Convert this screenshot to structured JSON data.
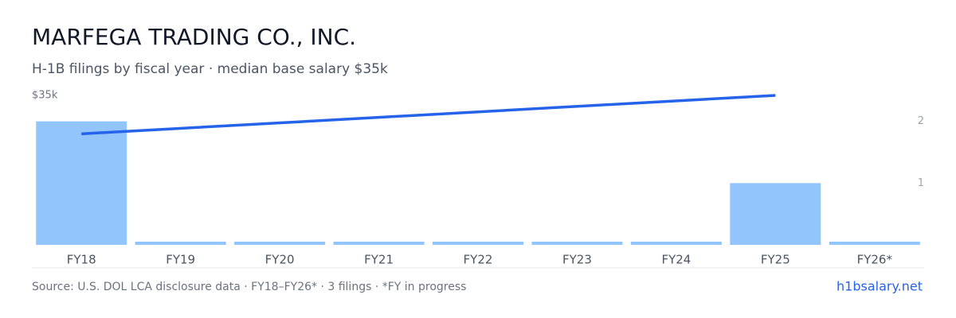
{
  "chart_data": {
    "type": "bar",
    "title": "MARFEGA TRADING CO., INC.",
    "subtitle": "H-1B filings by fiscal year · median base salary $35k",
    "categories": [
      "FY18",
      "FY19",
      "FY20",
      "FY21",
      "FY22",
      "FY23",
      "FY24",
      "FY25",
      "FY26*"
    ],
    "series": [
      {
        "values": [
          2,
          0,
          0,
          0,
          0,
          0,
          0,
          1,
          0
        ],
        "color": "#93c5fd",
        "axis": "y2"
      }
    ],
    "line": {
      "x": [
        "FY18",
        "FY25"
      ],
      "values": [
        26000,
        35000
      ],
      "color": "#2563eb"
    },
    "ylim": [
      0,
      35000
    ],
    "yticks": [
      {
        "value": 35000,
        "label": "$35k"
      }
    ],
    "y2lim": [
      0,
      2.42
    ],
    "y2ticks": [
      1,
      2
    ],
    "footer": {
      "source": "Source: U.S. DOL LCA disclosure data · FY18–FY26* · 3 filings · *FY in progress",
      "brand": "h1bsalary.net"
    }
  }
}
